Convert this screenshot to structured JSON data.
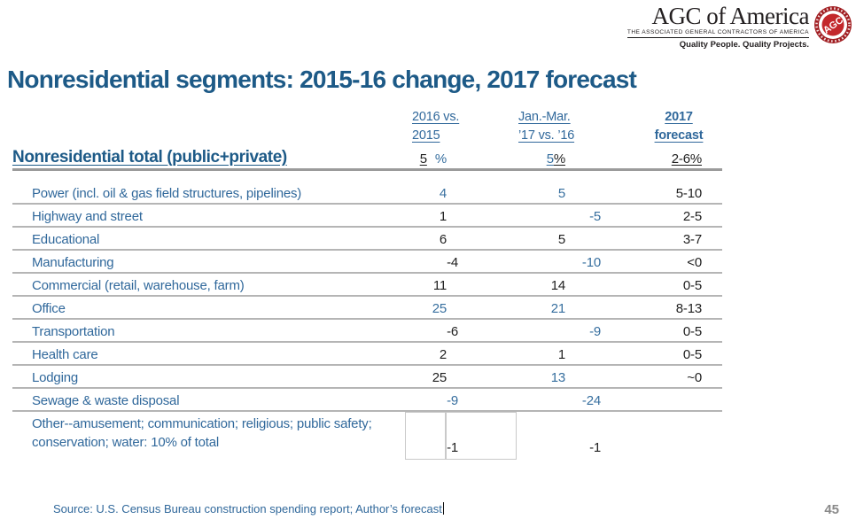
{
  "logo": {
    "brand": "AGC of America",
    "subtitle": "THE ASSOCIATED GENERAL CONTRACTORS OF AMERICA",
    "tagline": "Quality People. Quality Projects.",
    "seal_text": "AGC",
    "seal_color": "#c3272b",
    "seal_ring_color": "#a11e22"
  },
  "title": "Nonresidential segments: 2015-16 change, 2017 forecast",
  "table": {
    "headers": [
      {
        "line1": "2016 vs.",
        "line2": "2015"
      },
      {
        "line1": "Jan.-Mar.",
        "line2": "’17 vs. ’16"
      },
      {
        "line1": "2017",
        "line2": "forecast"
      }
    ],
    "total": {
      "label": "Nonresidential total (public+private)",
      "cells": [
        {
          "parts": [
            {
              "t": "5",
              "c": "dark",
              "u": true
            },
            {
              "t": "%",
              "c": "blue",
              "u": false,
              "gap": true
            }
          ]
        },
        {
          "parts": [
            {
              "t": "5",
              "c": "blue",
              "u": true
            },
            {
              "t": "%",
              "c": "dark",
              "u": true
            }
          ]
        },
        {
          "parts": [
            {
              "t": "2-6%",
              "c": "dark",
              "u": true
            }
          ]
        }
      ]
    },
    "rows": [
      {
        "label": "Power (incl. oil & gas field structures, pipelines)",
        "cells": [
          {
            "v": "4",
            "c": "blue"
          },
          {
            "v": "5",
            "c": "blue"
          },
          {
            "v": "5-10",
            "c": "dark"
          }
        ]
      },
      {
        "label": "Highway and street",
        "cells": [
          {
            "v": "1",
            "c": "dark"
          },
          {
            "v": "-5",
            "c": "blue"
          },
          {
            "v": "2-5",
            "c": "dark"
          }
        ]
      },
      {
        "label": "Educational",
        "cells": [
          {
            "v": "6",
            "c": "dark"
          },
          {
            "v": "5",
            "c": "dark"
          },
          {
            "v": "3-7",
            "c": "dark"
          }
        ]
      },
      {
        "label": "Manufacturing",
        "cells": [
          {
            "v": "-4",
            "c": "dark"
          },
          {
            "v": "-10",
            "c": "blue"
          },
          {
            "v": "<0",
            "c": "dark"
          }
        ]
      },
      {
        "label": "Commercial (retail, warehouse, farm)",
        "cells": [
          {
            "v": "11",
            "c": "dark"
          },
          {
            "v": "14",
            "c": "dark"
          },
          {
            "v": "0-5",
            "c": "dark"
          }
        ]
      },
      {
        "label": "Office",
        "cells": [
          {
            "v": "25",
            "c": "blue"
          },
          {
            "v": "21",
            "c": "blue"
          },
          {
            "v": "8-13",
            "c": "dark"
          }
        ]
      },
      {
        "label": "Transportation",
        "cells": [
          {
            "v": "-6",
            "c": "dark"
          },
          {
            "v": "-9",
            "c": "blue"
          },
          {
            "v": "0-5",
            "c": "dark"
          }
        ]
      },
      {
        "label": "Health care",
        "cells": [
          {
            "v": "2",
            "c": "dark"
          },
          {
            "v": "1",
            "c": "dark"
          },
          {
            "v": "0-5",
            "c": "dark"
          }
        ]
      },
      {
        "label": "Lodging",
        "cells": [
          {
            "v": "25",
            "c": "dark"
          },
          {
            "v": "13",
            "c": "blue"
          },
          {
            "v": "~0",
            "c": "dark"
          }
        ]
      },
      {
        "label": "Sewage & waste disposal",
        "cells": [
          {
            "v": "-9",
            "c": "blue"
          },
          {
            "v": "-24",
            "c": "blue"
          },
          {
            "v": "",
            "c": "dark"
          }
        ]
      },
      {
        "label": "Other--amusement; communication; religious; public safety; conservation; water: 10% of total",
        "cells": [
          {
            "v": "-1",
            "c": "dark"
          },
          {
            "v": "-1",
            "c": "dark"
          },
          {
            "v": "",
            "c": "dark"
          }
        ],
        "variant": "other"
      }
    ]
  },
  "footer": {
    "source": "Source: U.S. Census Bureau construction spending report; Author’s forecast",
    "page": "45"
  },
  "colors": {
    "title": "#1d5a87",
    "label_blue": "#30689b",
    "value_blue": "#376f9f",
    "value_dark": "#1f1f1f",
    "rule_gray": "#b5b5b5"
  }
}
